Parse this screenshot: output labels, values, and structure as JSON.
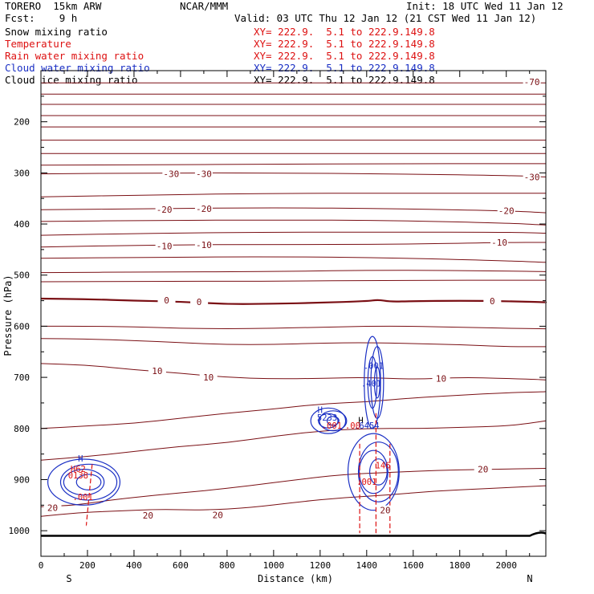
{
  "header": {
    "title": "TORERO  15km ARW",
    "center": "NCAR/MMM",
    "init": "Init: 18 UTC Wed 11 Jan 12",
    "fcst": "Fcst:    9 h",
    "valid": "Valid: 03 UTC Thu 12 Jan 12 (21 CST Wed 11 Jan 12)"
  },
  "colors": {
    "temperature": "#7a0f14",
    "rain": "#dd1111",
    "cloud": "#1a2fc4",
    "text": "#000000"
  },
  "fields": [
    {
      "name": "Snow mixing ratio",
      "xy": "XY= 222.9.  5.1 to 222.9.149.8",
      "color": "#000000"
    },
    {
      "name": "Temperature",
      "xy": "XY= 222.9.  5.1 to 222.9.149.8",
      "color": "#dd1111"
    },
    {
      "name": "Rain water mixing ratio",
      "xy": "XY= 222.9.  5.1 to 222.9.149.8",
      "color": "#dd1111"
    },
    {
      "name": "Cloud water mixing ratio",
      "xy": "XY= 222.9.  5.1 to 222.9.149.8",
      "color": "#1a2fc4"
    },
    {
      "name": "Cloud ice mixing ratio",
      "xy": "XY= 222.9.  5.1 to 222.9.149.8",
      "color": "#000000"
    }
  ],
  "chart_data": {
    "type": "contour",
    "xlabel": "Distance (km)",
    "ylabel": "Pressure (hPa)",
    "xlim": [
      0,
      2170
    ],
    "ylim": [
      1050,
      100
    ],
    "x_ticks": [
      0,
      200,
      400,
      600,
      800,
      1000,
      1200,
      1400,
      1600,
      1800,
      2000
    ],
    "y_ticks": [
      200,
      300,
      400,
      500,
      600,
      700,
      800,
      900,
      1000
    ],
    "x_end_labels": {
      "left": "S",
      "right": "N"
    },
    "temperature_contours": [
      {
        "level": 20,
        "points": [
          [
            0,
            953
          ],
          [
            150,
            950
          ],
          [
            300,
            940
          ],
          [
            500,
            930
          ],
          [
            700,
            922
          ],
          [
            900,
            912
          ],
          [
            1100,
            900
          ],
          [
            1300,
            890
          ],
          [
            1500,
            886
          ],
          [
            1700,
            882
          ],
          [
            1900,
            880
          ],
          [
            2170,
            878
          ]
        ]
      },
      {
        "level": 20,
        "points": [
          [
            0,
            972
          ],
          [
            150,
            965
          ],
          [
            300,
            962
          ],
          [
            500,
            958
          ],
          [
            700,
            960
          ],
          [
            900,
            955
          ],
          [
            1100,
            944
          ],
          [
            1300,
            935
          ],
          [
            1500,
            930
          ],
          [
            1700,
            922
          ],
          [
            1900,
            918
          ],
          [
            2170,
            912
          ]
        ]
      },
      {
        "level": null,
        "points": [
          [
            0,
            862
          ],
          [
            200,
            855
          ],
          [
            400,
            845
          ],
          [
            600,
            835
          ],
          [
            800,
            828
          ],
          [
            1000,
            815
          ],
          [
            1200,
            805
          ],
          [
            1400,
            800
          ],
          [
            1600,
            800
          ],
          [
            1800,
            798
          ],
          [
            2000,
            795
          ],
          [
            2100,
            790
          ],
          [
            2170,
            785
          ]
        ]
      },
      {
        "level": null,
        "points": [
          [
            0,
            800
          ],
          [
            200,
            795
          ],
          [
            400,
            790
          ],
          [
            600,
            780
          ],
          [
            800,
            770
          ],
          [
            1000,
            762
          ],
          [
            1200,
            752
          ],
          [
            1400,
            748
          ],
          [
            1600,
            740
          ],
          [
            1800,
            735
          ],
          [
            2000,
            730
          ],
          [
            2170,
            728
          ]
        ]
      },
      {
        "level": 10,
        "points": [
          [
            0,
            673
          ],
          [
            200,
            676
          ],
          [
            400,
            685
          ],
          [
            600,
            692
          ],
          [
            800,
            700
          ],
          [
            1000,
            703
          ],
          [
            1200,
            702
          ],
          [
            1400,
            700
          ],
          [
            1600,
            704
          ],
          [
            1800,
            700
          ],
          [
            2000,
            702
          ],
          [
            2170,
            705
          ]
        ]
      },
      {
        "level": null,
        "points": [
          [
            0,
            624
          ],
          [
            200,
            625
          ],
          [
            400,
            628
          ],
          [
            600,
            632
          ],
          [
            800,
            636
          ],
          [
            1000,
            636
          ],
          [
            1200,
            633
          ],
          [
            1400,
            632
          ],
          [
            1600,
            634
          ],
          [
            1800,
            636
          ],
          [
            2000,
            640
          ],
          [
            2170,
            640
          ]
        ]
      },
      {
        "level": null,
        "points": [
          [
            0,
            600
          ],
          [
            200,
            600
          ],
          [
            400,
            601
          ],
          [
            600,
            604
          ],
          [
            800,
            605
          ],
          [
            1000,
            604
          ],
          [
            1200,
            602
          ],
          [
            1400,
            600
          ],
          [
            1600,
            600
          ],
          [
            1800,
            602
          ],
          [
            2000,
            604
          ],
          [
            2170,
            605
          ]
        ]
      },
      {
        "level": 0,
        "points": [
          [
            0,
            546
          ],
          [
            200,
            547
          ],
          [
            400,
            550
          ],
          [
            600,
            552
          ],
          [
            800,
            557
          ],
          [
            1000,
            556
          ],
          [
            1200,
            554
          ],
          [
            1400,
            551
          ],
          [
            1450,
            548
          ],
          [
            1500,
            552
          ],
          [
            1600,
            551
          ],
          [
            1800,
            550
          ],
          [
            2000,
            551
          ],
          [
            2170,
            553
          ]
        ]
      },
      {
        "level": null,
        "points": [
          [
            0,
            513
          ],
          [
            500,
            512
          ],
          [
            1000,
            512
          ],
          [
            1500,
            510
          ],
          [
            2170,
            510
          ]
        ]
      },
      {
        "level": null,
        "points": [
          [
            0,
            495
          ],
          [
            500,
            494
          ],
          [
            1000,
            493
          ],
          [
            1500,
            490
          ],
          [
            2000,
            492
          ],
          [
            2170,
            493
          ]
        ]
      },
      {
        "level": null,
        "points": [
          [
            0,
            467
          ],
          [
            500,
            465
          ],
          [
            1000,
            464
          ],
          [
            1500,
            466
          ],
          [
            2000,
            472
          ],
          [
            2170,
            475
          ]
        ]
      },
      {
        "level": -10,
        "points": [
          [
            0,
            445
          ],
          [
            500,
            441
          ],
          [
            1000,
            440
          ],
          [
            1500,
            440
          ],
          [
            2000,
            436
          ],
          [
            2170,
            436
          ]
        ]
      },
      {
        "level": null,
        "points": [
          [
            0,
            422
          ],
          [
            500,
            418
          ],
          [
            1000,
            416
          ],
          [
            1500,
            416
          ],
          [
            2000,
            416
          ],
          [
            2170,
            418
          ]
        ]
      },
      {
        "level": null,
        "points": [
          [
            0,
            395
          ],
          [
            500,
            393
          ],
          [
            1000,
            392
          ],
          [
            1500,
            393
          ],
          [
            2000,
            398
          ],
          [
            2170,
            402
          ]
        ]
      },
      {
        "level": -20,
        "points": [
          [
            0,
            372
          ],
          [
            500,
            370
          ],
          [
            1000,
            368
          ],
          [
            1500,
            370
          ],
          [
            2000,
            374
          ],
          [
            2170,
            378
          ]
        ]
      },
      {
        "level": null,
        "points": [
          [
            0,
            347
          ],
          [
            500,
            343
          ],
          [
            1000,
            340
          ],
          [
            1500,
            340
          ],
          [
            2000,
            340
          ],
          [
            2170,
            340
          ]
        ]
      },
      {
        "level": -30,
        "points": [
          [
            0,
            302
          ],
          [
            500,
            300
          ],
          [
            1000,
            300
          ],
          [
            1500,
            302
          ],
          [
            2000,
            305
          ],
          [
            2170,
            308
          ]
        ]
      },
      {
        "level": null,
        "points": [
          [
            0,
            285
          ],
          [
            500,
            284
          ],
          [
            1000,
            283
          ],
          [
            1500,
            282
          ],
          [
            2000,
            282
          ],
          [
            2170,
            282
          ]
        ]
      },
      {
        "level": null,
        "points": [
          [
            0,
            262
          ],
          [
            500,
            262
          ],
          [
            1000,
            262
          ],
          [
            1500,
            262
          ],
          [
            2000,
            262
          ],
          [
            2170,
            262
          ]
        ]
      },
      {
        "level": null,
        "points": [
          [
            0,
            236
          ],
          [
            500,
            236
          ],
          [
            1000,
            236
          ],
          [
            1500,
            236
          ],
          [
            2000,
            236
          ],
          [
            2170,
            236
          ]
        ]
      },
      {
        "level": null,
        "points": [
          [
            0,
            210
          ],
          [
            500,
            210
          ],
          [
            1000,
            210
          ],
          [
            1500,
            210
          ],
          [
            2000,
            210
          ],
          [
            2170,
            210
          ]
        ]
      },
      {
        "level": null,
        "points": [
          [
            0,
            188
          ],
          [
            500,
            188
          ],
          [
            1000,
            188
          ],
          [
            1500,
            188
          ],
          [
            2000,
            188
          ],
          [
            2170,
            188
          ]
        ]
      },
      {
        "level": null,
        "points": [
          [
            0,
            166
          ],
          [
            500,
            166
          ],
          [
            1000,
            166
          ],
          [
            1500,
            166
          ],
          [
            2000,
            166
          ],
          [
            2170,
            166
          ]
        ]
      },
      {
        "level": null,
        "points": [
          [
            0,
            146
          ],
          [
            500,
            146
          ],
          [
            1000,
            146
          ],
          [
            1500,
            146
          ],
          [
            2000,
            146
          ],
          [
            2170,
            146
          ]
        ]
      },
      {
        "level": -70,
        "points": [
          [
            0,
            124
          ],
          [
            500,
            124
          ],
          [
            1000,
            124
          ],
          [
            1500,
            124
          ],
          [
            2000,
            124
          ],
          [
            2170,
            124
          ]
        ]
      }
    ],
    "temperature_labels": [
      {
        "text": "-70",
        "x": 2110,
        "p": 122
      },
      {
        "text": "-30",
        "x": 560,
        "p": 302
      },
      {
        "text": "-30",
        "x": 700,
        "p": 302
      },
      {
        "text": "-30",
        "x": 2110,
        "p": 308
      },
      {
        "text": "-20",
        "x": 530,
        "p": 372
      },
      {
        "text": "-20",
        "x": 700,
        "p": 370
      },
      {
        "text": "-20",
        "x": 2000,
        "p": 374
      },
      {
        "text": "-10",
        "x": 530,
        "p": 443
      },
      {
        "text": "-10",
        "x": 700,
        "p": 441
      },
      {
        "text": "-10",
        "x": 1970,
        "p": 436
      },
      {
        "text": "0",
        "x": 540,
        "p": 549
      },
      {
        "text": "0",
        "x": 680,
        "p": 552
      },
      {
        "text": "0",
        "x": 1940,
        "p": 551
      },
      {
        "text": "10",
        "x": 500,
        "p": 687
      },
      {
        "text": "10",
        "x": 720,
        "p": 700
      },
      {
        "text": "10",
        "x": 1720,
        "p": 702
      },
      {
        "text": "20",
        "x": 50,
        "p": 955
      },
      {
        "text": "20",
        "x": 460,
        "p": 970
      },
      {
        "text": "20",
        "x": 760,
        "p": 969
      },
      {
        "text": "20",
        "x": 1900,
        "p": 880
      },
      {
        "text": "20",
        "x": 1480,
        "p": 960
      }
    ],
    "cloud_water_regions": [
      {
        "x": [
          40,
          350
        ],
        "p": [
          860,
          950
        ]
      },
      {
        "x": [
          1330,
          1550
        ],
        "p": [
          810,
          960
        ]
      },
      {
        "x": [
          1170,
          1320
        ],
        "p": [
          760,
          810
        ]
      },
      {
        "x": [
          1400,
          1470
        ],
        "p": [
          620,
          800
        ]
      }
    ],
    "cloud_labels": [
      {
        "text": "H",
        "x": 170,
        "p": 865,
        "color": "#1a2fc4"
      },
      {
        "text": "H",
        "x": 1200,
        "p": 770,
        "color": "#1a2fc4"
      },
      {
        "text": "5233",
        "x": 1230,
        "p": 785,
        "color": "#1a2fc4"
      },
      {
        "text": "H",
        "x": 1375,
        "p": 790,
        "color": "#000000"
      },
      {
        "text": ".6454",
        "x": 1400,
        "p": 800,
        "color": "#1a2fc4"
      },
      {
        "text": ".001",
        "x": 1430,
        "p": 683,
        "color": "#1a2fc4"
      },
      {
        "text": ".401",
        "x": 1420,
        "p": 718,
        "color": "#1a2fc4"
      }
    ],
    "rain_contours": [
      {
        "points": [
          [
            1370,
            830
          ],
          [
            1370,
            1005
          ]
        ]
      },
      {
        "points": [
          [
            1440,
            770
          ],
          [
            1440,
            1005
          ]
        ]
      },
      {
        "points": [
          [
            1500,
            830
          ],
          [
            1500,
            1005
          ]
        ]
      },
      {
        "points": [
          [
            220,
            870
          ],
          [
            195,
            990
          ]
        ]
      }
    ],
    "rain_labels": [
      {
        "text": ".001",
        "x": 1250,
        "p": 800
      },
      {
        "text": ".00",
        "x": 1340,
        "p": 800
      },
      {
        "text": "146",
        "x": 1470,
        "p": 878
      },
      {
        "text": ".001",
        "x": 1400,
        "p": 910
      },
      {
        "text": ".001",
        "x": 180,
        "p": 940
      },
      {
        "text": "H62",
        "x": 160,
        "p": 885
      },
      {
        "text": "0138",
        "x": 160,
        "p": 898
      }
    ],
    "ground": {
      "pressure": 1010
    }
  }
}
